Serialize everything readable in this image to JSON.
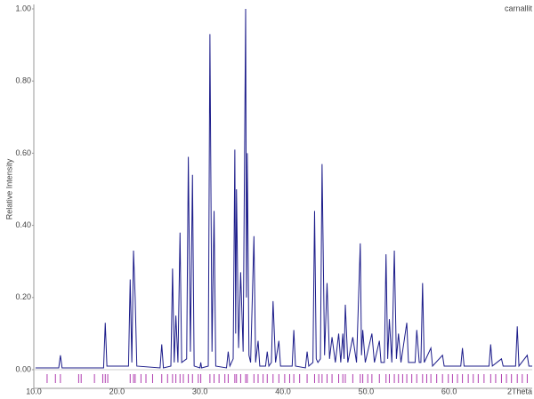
{
  "chart_data": {
    "type": "line",
    "y_label": "Relative Intensity",
    "x_label": "2Theta",
    "xlim": [
      10,
      70
    ],
    "ylim": [
      0,
      1.0
    ],
    "xticks": [
      {
        "value": 10,
        "label": "10.0"
      },
      {
        "value": 20,
        "label": "20.0"
      },
      {
        "value": 30,
        "label": "30.0"
      },
      {
        "value": 40,
        "label": "40.0"
      },
      {
        "value": 50,
        "label": "50.0"
      },
      {
        "value": 60,
        "label": "60.0"
      }
    ],
    "yticks": [
      {
        "value": 0,
        "label": "0.00"
      },
      {
        "value": 0.2,
        "label": "0.20"
      },
      {
        "value": 0.4,
        "label": "0.40"
      },
      {
        "value": 0.6,
        "label": "0.60"
      },
      {
        "value": 0.8,
        "label": "0.80"
      },
      {
        "value": 1.0,
        "label": "1.00"
      }
    ],
    "series": [
      {
        "name": "carnallit",
        "color": "#1c1c8a",
        "x": [
          10.2,
          13.0,
          13.2,
          13.4,
          18.4,
          18.6,
          18.8,
          21.4,
          21.6,
          21.8,
          22.0,
          22.2,
          22.4,
          25.2,
          25.4,
          25.6,
          26.5,
          26.7,
          26.9,
          27.1,
          27.35,
          27.6,
          27.8,
          28.4,
          28.6,
          28.85,
          29.1,
          29.3,
          30.0,
          30.1,
          30.2,
          31.0,
          31.2,
          31.45,
          31.7,
          31.9,
          33.2,
          33.4,
          33.6,
          34.0,
          34.2,
          34.3,
          34.4,
          34.65,
          34.9,
          35.2,
          35.5,
          35.6,
          35.7,
          35.9,
          36.1,
          36.5,
          36.7,
          37.0,
          37.2,
          37.9,
          38.1,
          38.3,
          38.6,
          38.8,
          39.1,
          39.5,
          39.7,
          41.1,
          41.3,
          41.5,
          42.7,
          42.9,
          43.1,
          43.6,
          43.8,
          44.0,
          44.2,
          44.5,
          44.7,
          45.0,
          45.3,
          45.6,
          45.9,
          46.3,
          46.7,
          46.95,
          47.2,
          47.35,
          47.5,
          47.8,
          48.4,
          48.85,
          49.3,
          49.45,
          49.6,
          49.9,
          50.7,
          51.0,
          51.6,
          51.8,
          52.2,
          52.4,
          52.6,
          52.8,
          53.1,
          53.4,
          53.65,
          53.9,
          54.2,
          54.9,
          55.1,
          55.9,
          56.1,
          56.4,
          56.6,
          56.8,
          57.0,
          57.8,
          58.0,
          59.2,
          59.4,
          61.4,
          61.6,
          61.8,
          64.8,
          65.0,
          65.2,
          66.3,
          66.5,
          68.0,
          68.2,
          68.4,
          69.4,
          69.6,
          70.0
        ],
        "values": [
          0.005,
          0.005,
          0.04,
          0.005,
          0.005,
          0.13,
          0.01,
          0.01,
          0.25,
          0.02,
          0.33,
          0.2,
          0.01,
          0.005,
          0.07,
          0.005,
          0.01,
          0.28,
          0.02,
          0.15,
          0.02,
          0.38,
          0.02,
          0.03,
          0.59,
          0.05,
          0.54,
          0.01,
          0.005,
          0.02,
          0.005,
          0.01,
          0.93,
          0.05,
          0.44,
          0.01,
          0.005,
          0.05,
          0.01,
          0.03,
          0.61,
          0.1,
          0.5,
          0.06,
          0.27,
          0.05,
          1.0,
          0.2,
          0.6,
          0.04,
          0.02,
          0.37,
          0.02,
          0.08,
          0.01,
          0.01,
          0.05,
          0.01,
          0.02,
          0.19,
          0.02,
          0.08,
          0.01,
          0.01,
          0.11,
          0.01,
          0.005,
          0.05,
          0.01,
          0.02,
          0.44,
          0.03,
          0.02,
          0.03,
          0.57,
          0.04,
          0.24,
          0.03,
          0.09,
          0.02,
          0.1,
          0.02,
          0.1,
          0.03,
          0.18,
          0.02,
          0.09,
          0.02,
          0.35,
          0.04,
          0.11,
          0.02,
          0.1,
          0.02,
          0.08,
          0.02,
          0.02,
          0.32,
          0.03,
          0.14,
          0.02,
          0.33,
          0.03,
          0.1,
          0.02,
          0.13,
          0.02,
          0.02,
          0.11,
          0.02,
          0.02,
          0.24,
          0.02,
          0.06,
          0.01,
          0.04,
          0.01,
          0.01,
          0.06,
          0.01,
          0.01,
          0.07,
          0.01,
          0.03,
          0.01,
          0.01,
          0.12,
          0.01,
          0.04,
          0.01,
          0.01
        ]
      }
    ],
    "reflections": {
      "color": "#b03cb0",
      "x": [
        11.6,
        12.6,
        13.2,
        15.4,
        15.7,
        17.3,
        18.3,
        18.6,
        18.9,
        21.6,
        22.0,
        22.2,
        22.9,
        23.5,
        24.3,
        25.4,
        26.1,
        26.7,
        27.1,
        27.6,
        28.0,
        28.6,
        29.1,
        29.8,
        30.1,
        31.2,
        31.7,
        32.3,
        33.0,
        33.4,
        34.2,
        34.4,
        34.9,
        35.5,
        35.7,
        36.5,
        37.0,
        37.6,
        38.1,
        38.8,
        39.5,
        40.2,
        40.8,
        41.3,
        42.0,
        42.9,
        43.8,
        44.3,
        44.7,
        45.3,
        45.9,
        46.7,
        47.2,
        47.5,
        48.4,
        49.3,
        49.6,
        50.2,
        50.7,
        51.6,
        52.4,
        52.8,
        53.4,
        53.9,
        54.4,
        54.9,
        55.5,
        56.1,
        56.8,
        57.3,
        57.8,
        58.5,
        59.2,
        59.9,
        60.4,
        61.0,
        61.6,
        62.3,
        62.9,
        63.5,
        64.2,
        65.0,
        65.6,
        66.3,
        66.9,
        67.5,
        68.2,
        68.8,
        69.4
      ]
    }
  }
}
